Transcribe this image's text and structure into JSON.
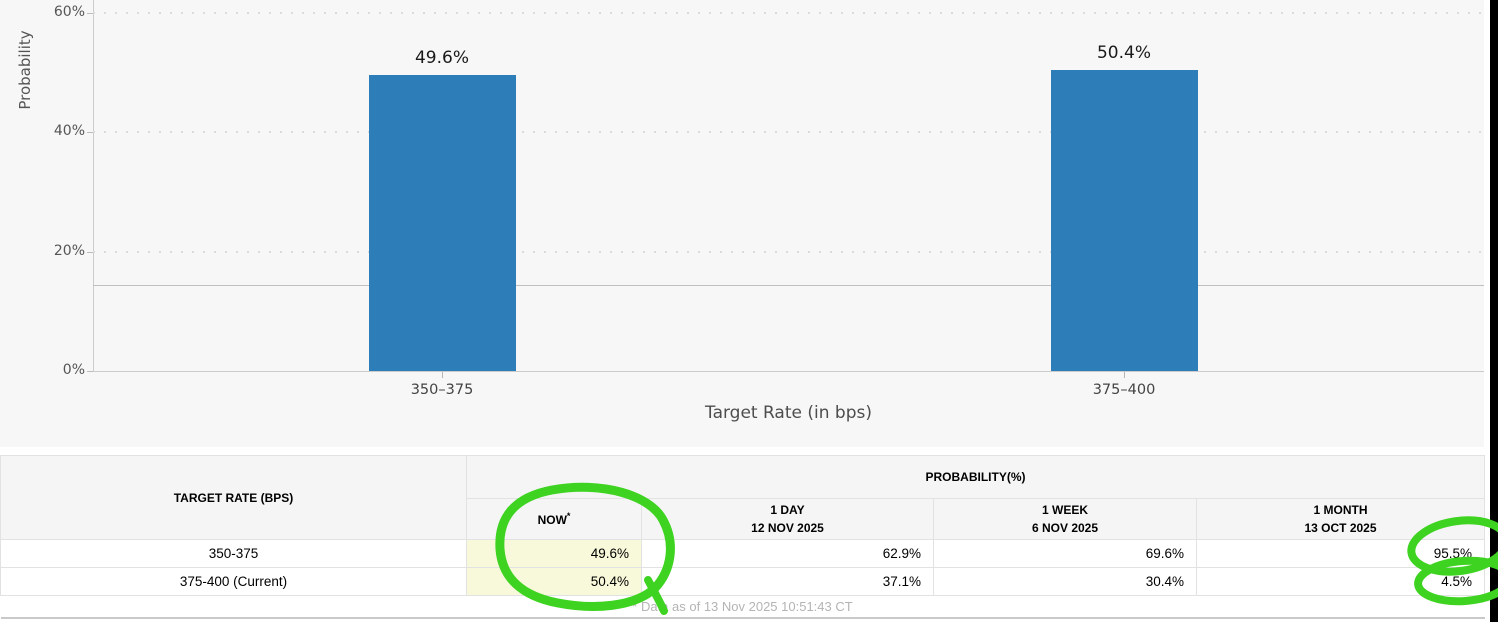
{
  "chart_data": {
    "type": "bar",
    "title": "",
    "ylabel": "Probability",
    "xlabel": "Target Rate (in bps)",
    "categories": [
      "350–375",
      "375–400"
    ],
    "values": [
      49.6,
      50.4
    ],
    "bar_labels": [
      "49.6%",
      "50.4%"
    ],
    "bar_color": "#2d7eb8",
    "y_axis": {
      "ticks": [
        {
          "label": "0%",
          "value": 0
        },
        {
          "label": "20%",
          "value": 20
        },
        {
          "label": "40%",
          "value": 40
        },
        {
          "label": "60%",
          "value": 60
        }
      ],
      "visible_range": [
        0,
        62
      ]
    },
    "reference_line": 14.4,
    "grid": "dotted horizontal",
    "legend_position": "none"
  },
  "table": {
    "col1_header": "TARGET RATE (BPS)",
    "group_header": "PROBABILITY(%)",
    "columns": [
      {
        "line1": "NOW",
        "sup": "*"
      },
      {
        "line1": "1 DAY",
        "line2": "12 NOV 2025"
      },
      {
        "line1": "1 WEEK",
        "line2": "6 NOV 2025"
      },
      {
        "line1": "1 MONTH",
        "line2": "13 OCT 2025"
      }
    ],
    "rows": [
      {
        "target_rate": "350-375",
        "now": "49.6%",
        "day": "62.9%",
        "week": "69.6%",
        "month": "95.5%"
      },
      {
        "target_rate": "375-400 (Current)",
        "now": "50.4%",
        "day": "37.1%",
        "week": "30.4%",
        "month": "4.5%"
      }
    ],
    "footnote": "* Data as of 13 Nov 2025 10:51:43 CT",
    "now_highlight_color": "#f8f8da"
  },
  "annotations": {
    "color": "#3ed321",
    "items": [
      "circle-now-column-values",
      "circle-95.5%",
      "circle-4.5%"
    ]
  }
}
